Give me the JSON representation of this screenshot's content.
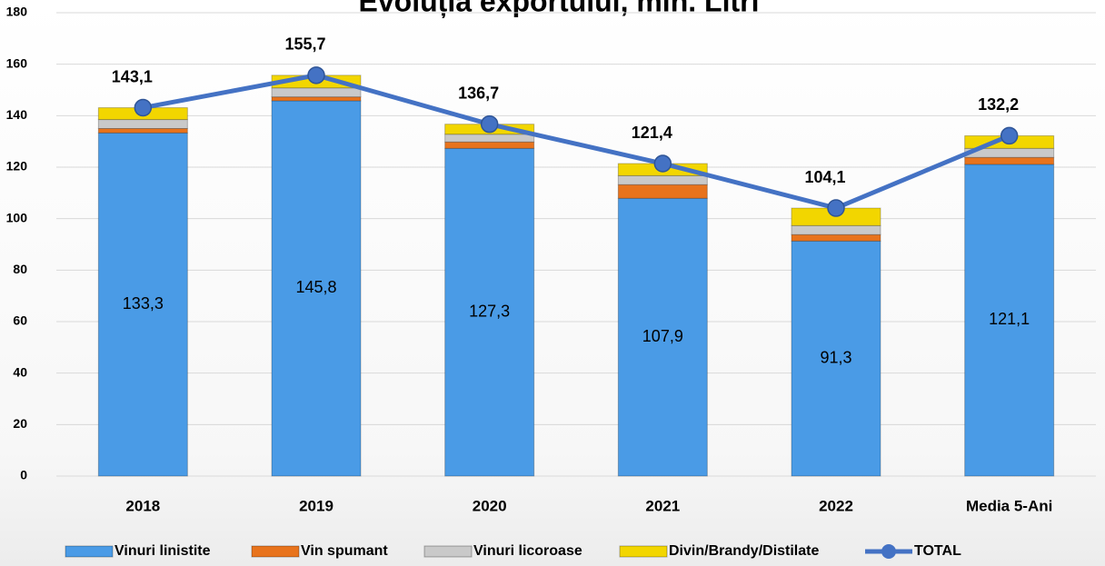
{
  "chart_data": {
    "type": "stacked_bar_line",
    "title": "Evoluția exportului, mln. Litri",
    "categories": [
      "2018",
      "2019",
      "2020",
      "2021",
      "2022",
      "Media 5-Ani"
    ],
    "ylim": [
      0,
      180
    ],
    "yticks": [
      0,
      20,
      40,
      60,
      80,
      100,
      120,
      140,
      160,
      180
    ],
    "grid": true,
    "series": [
      {
        "name": "Vinuri linistite",
        "color": "#4a9be6",
        "values": [
          133.3,
          145.8,
          127.3,
          107.9,
          91.3,
          121.1
        ],
        "value_labels": [
          "133,3",
          "145,8",
          "127,3",
          "107,9",
          "91,3",
          "121,1"
        ]
      },
      {
        "name": "Vin spumant",
        "color": "#e8731c",
        "values": [
          1.7,
          1.5,
          2.5,
          5.3,
          2.5,
          2.7
        ]
      },
      {
        "name": "Vinuri licoroase",
        "color": "#c9c9c9",
        "values": [
          3.5,
          3.5,
          3.0,
          3.5,
          3.5,
          3.5
        ]
      },
      {
        "name": "Divin/Brandy/Distilate",
        "color": "#f2d600",
        "values": [
          4.6,
          4.9,
          3.9,
          4.7,
          6.8,
          4.9
        ]
      },
      {
        "name": "TOTAL",
        "type": "line",
        "color": "#4472c4",
        "values": [
          143.1,
          155.7,
          136.7,
          121.4,
          104.1,
          132.2
        ],
        "value_labels": [
          "143,1",
          "155,7",
          "136,7",
          "121,4",
          "104,1",
          "132,2"
        ]
      }
    ]
  }
}
